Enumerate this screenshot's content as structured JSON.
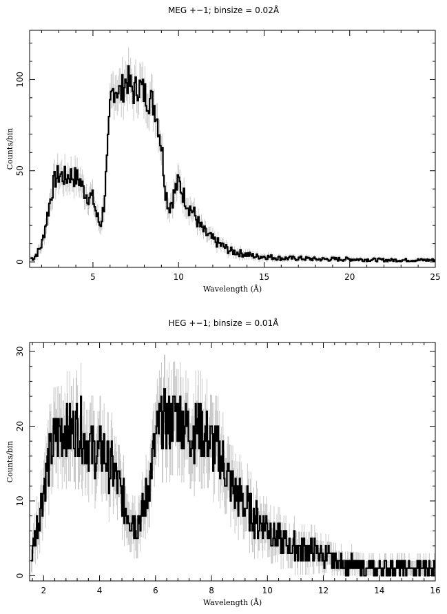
{
  "chart_data": [
    {
      "type": "line",
      "title": "MEG +−1; binsize = 0.02Å",
      "xlabel": "Wavelength (Å)",
      "ylabel": "Counts/bin",
      "xlim": [
        1.3,
        25
      ],
      "ylim": [
        -3,
        127
      ],
      "xticks": [
        5,
        10,
        15,
        20,
        25
      ],
      "yticks": [
        0,
        50,
        100
      ],
      "grid": false,
      "legend": "none",
      "colors": {
        "data": "#000000",
        "error_bars": "#c8c8c8"
      },
      "series": [
        {
          "x": [
            1.5,
            1.8,
            2.0,
            2.2,
            2.4,
            2.6,
            2.8,
            3.0,
            3.2,
            3.4,
            3.6,
            3.8,
            4.0,
            4.2,
            4.4,
            4.6,
            4.8,
            5.0,
            5.2,
            5.4,
            5.6,
            5.8,
            6.0,
            6.2,
            6.4,
            6.6,
            6.8,
            7.0,
            7.2,
            7.4,
            7.6,
            7.8,
            8.0,
            8.2,
            8.4,
            8.6,
            8.8,
            9.0,
            9.2,
            9.4,
            9.6,
            9.8,
            10.0,
            10.2,
            10.4,
            10.6,
            10.8,
            11.0,
            11.2,
            11.5,
            12.0,
            12.5,
            13.0,
            13.5,
            14.0,
            14.5,
            15.0,
            16.0,
            17.0,
            18.0,
            20.0,
            22.0,
            25.0
          ],
          "y": [
            2,
            6,
            10,
            20,
            30,
            40,
            46,
            48,
            47,
            46,
            48,
            47,
            46,
            45,
            40,
            37,
            36,
            34,
            25,
            20,
            30,
            55,
            88,
            96,
            95,
            92,
            98,
            100,
            95,
            93,
            97,
            95,
            92,
            90,
            88,
            85,
            75,
            62,
            40,
            30,
            34,
            40,
            44,
            38,
            34,
            30,
            28,
            24,
            20,
            16,
            12,
            9,
            6,
            5,
            4,
            3,
            3,
            2,
            2,
            1.5,
            1.5,
            1,
            1
          ]
        }
      ]
    },
    {
      "type": "line",
      "title": "HEG +−1; binsize = 0.01Å",
      "xlabel": "Wavelength (Å)",
      "ylabel": "Counts/bin",
      "xlim": [
        1.5,
        16
      ],
      "ylim": [
        -0.7,
        31.2
      ],
      "xticks": [
        2,
        4,
        6,
        8,
        10,
        12,
        14,
        16
      ],
      "yticks": [
        0,
        10,
        20,
        30
      ],
      "grid": false,
      "legend": "none",
      "colors": {
        "data": "#000000",
        "error_bars": "#c8c8c8"
      },
      "series": [
        {
          "x": [
            1.5,
            1.7,
            1.9,
            2.1,
            2.3,
            2.5,
            2.7,
            2.9,
            3.1,
            3.3,
            3.5,
            3.7,
            3.9,
            4.1,
            4.3,
            4.5,
            4.7,
            4.9,
            5.1,
            5.3,
            5.5,
            5.7,
            5.9,
            6.1,
            6.3,
            6.5,
            6.7,
            6.9,
            7.1,
            7.3,
            7.5,
            7.7,
            7.9,
            8.1,
            8.3,
            8.5,
            8.7,
            8.9,
            9.1,
            9.3,
            9.5,
            9.7,
            9.9,
            10.1,
            10.3,
            10.5,
            10.7,
            10.9,
            11.2,
            11.5,
            11.8,
            12.1,
            12.4,
            12.7,
            13.0,
            13.5,
            14.0,
            14.5,
            15.0,
            15.5,
            16.0
          ],
          "y": [
            1,
            6,
            10,
            14,
            17,
            19,
            20,
            19,
            20,
            20,
            18,
            17,
            16,
            17,
            15,
            14,
            12,
            9,
            8,
            7,
            8,
            11,
            16,
            20,
            21,
            20,
            22,
            21,
            20,
            19,
            20,
            19,
            18,
            17,
            16,
            14,
            12,
            11,
            10,
            9,
            8,
            7,
            7,
            6,
            5,
            4.5,
            4,
            4,
            3.5,
            3.5,
            3,
            2.5,
            2,
            1.5,
            1.5,
            1,
            1,
            1,
            1,
            1,
            1
          ]
        }
      ]
    }
  ]
}
